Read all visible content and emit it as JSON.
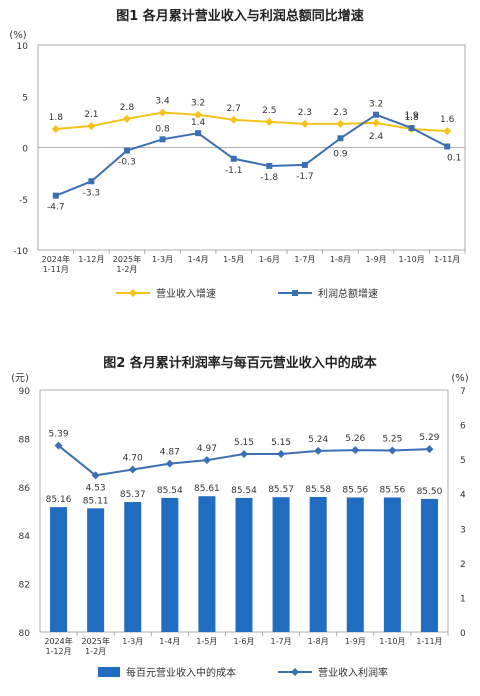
{
  "chart_data": [
    {
      "type": "line",
      "title": "图1  各月累计营业收入与利润总额同比增速",
      "unit_label": "(%)",
      "categories": [
        [
          "2024年",
          "1-11月"
        ],
        [
          "1-12月"
        ],
        [
          "2025年",
          "1-2月"
        ],
        [
          "1-3月"
        ],
        [
          "1-4月"
        ],
        [
          "1-5月"
        ],
        [
          "1-6月"
        ],
        [
          "1-7月"
        ],
        [
          "1-8月"
        ],
        [
          "1-9月"
        ],
        [
          "1-10月"
        ],
        [
          "1-11月"
        ]
      ],
      "ylim": [
        -10,
        10
      ],
      "yticks": [
        10,
        5,
        0,
        -5,
        -10
      ],
      "series": [
        {
          "name": "营业收入增速",
          "color": "#f5c21b",
          "marker": "diamond",
          "values": [
            1.8,
            2.1,
            2.8,
            3.4,
            3.2,
            2.7,
            2.5,
            2.3,
            2.3,
            2.4,
            1.8,
            1.6
          ],
          "labels": [
            "1.8",
            "2.1",
            "2.8",
            "3.4",
            "3.2",
            "2.7",
            "2.5",
            "2.3",
            "2.3",
            "2.4",
            "1.8",
            "1.6"
          ]
        },
        {
          "name": "利润总额增速",
          "color": "#3b6fb4",
          "marker": "square",
          "values": [
            -4.7,
            -3.3,
            -0.3,
            0.8,
            1.4,
            -1.1,
            -1.8,
            -1.7,
            0.9,
            3.2,
            1.9,
            0.1
          ],
          "labels": [
            "-4.7",
            "-3.3",
            "-0.3",
            "0.8",
            "1.4",
            "-1.1",
            "-1.8",
            "-1.7",
            "0.9",
            "3.2",
            "1.9",
            "0.1"
          ]
        }
      ],
      "legend": "bottom"
    },
    {
      "type": "bar",
      "title": "图2  各月累计利润率与每百元营业收入中的成本",
      "left_unit_label": "(元)",
      "right_unit_label": "(%)",
      "categories": [
        [
          "2024年",
          "1-12月"
        ],
        [
          "2025年",
          "1-2月"
        ],
        [
          "1-3月"
        ],
        [
          "1-4月"
        ],
        [
          "1-5月"
        ],
        [
          "1-6月"
        ],
        [
          "1-7月"
        ],
        [
          "1-8月"
        ],
        [
          "1-9月"
        ],
        [
          "1-10月"
        ],
        [
          "1-11月"
        ]
      ],
      "ylim": [
        80,
        90
      ],
      "yticks": [
        90,
        88,
        86,
        84,
        82,
        80
      ],
      "y2lim": [
        0,
        7
      ],
      "y2ticks": [
        7,
        6,
        5,
        4,
        3,
        2,
        1,
        0
      ],
      "bar_series": {
        "name": "每百元营业收入中的成本",
        "color": "#1f6cc0",
        "values": [
          85.16,
          85.11,
          85.37,
          85.54,
          85.61,
          85.54,
          85.57,
          85.58,
          85.56,
          85.56,
          85.5
        ],
        "labels": [
          "85.16",
          "85.11",
          "85.37",
          "85.54",
          "85.61",
          "85.54",
          "85.57",
          "85.58",
          "85.56",
          "85.56",
          "85.50"
        ]
      },
      "line_series": {
        "name": "营业收入利润率",
        "color": "#3b6fb4",
        "axis": "right",
        "values": [
          5.39,
          4.53,
          4.7,
          4.87,
          4.97,
          5.15,
          5.15,
          5.24,
          5.26,
          5.25,
          5.29
        ],
        "labels": [
          "5.39",
          "4.53",
          "4.70",
          "4.87",
          "4.97",
          "5.15",
          "5.15",
          "5.24",
          "5.26",
          "5.25",
          "5.29"
        ]
      },
      "legend": "bottom"
    }
  ]
}
